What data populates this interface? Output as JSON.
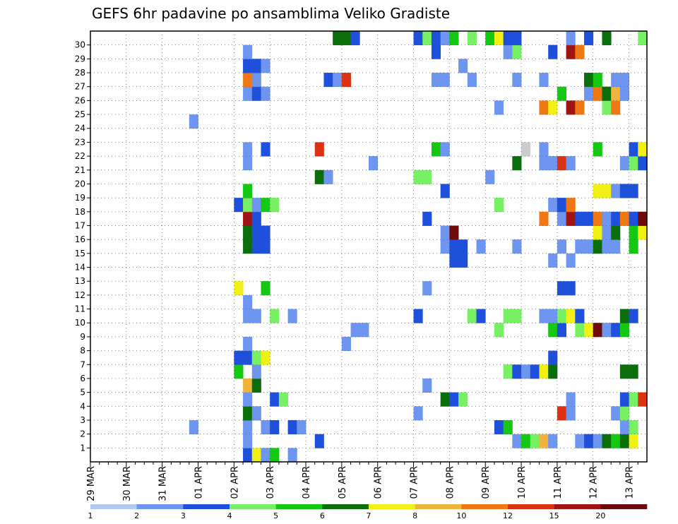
{
  "chart_data": {
    "type": "heatmap",
    "title": "GEFS 6hr padavine po ansamblima Veliko Gradiste",
    "y_categories": [
      0,
      1,
      2,
      3,
      4,
      5,
      6,
      7,
      8,
      9,
      10,
      11,
      12,
      13,
      14,
      15,
      16,
      17,
      18,
      19,
      20,
      21,
      22,
      23,
      24,
      25,
      26,
      27,
      28,
      29,
      30
    ],
    "y_tick_labels": [
      "1",
      "2",
      "3",
      "4",
      "5",
      "6",
      "7",
      "8",
      "9",
      "10",
      "11",
      "12",
      "13",
      "14",
      "15",
      "16",
      "17",
      "18",
      "19",
      "20",
      "21",
      "22",
      "23",
      "24",
      "25",
      "26",
      "27",
      "28",
      "29",
      "30"
    ],
    "x_tick_labels": [
      "29 MAR",
      "30 MAR",
      "31 MAR",
      "01 APR",
      "02 APR",
      "03 APR",
      "04 APR",
      "05 APR",
      "06 APR",
      "07 APR",
      "08 APR",
      "09 APR",
      "10 APR",
      "11 APR",
      "12 APR",
      "13 APR"
    ],
    "x_range_steps": [
      0,
      61
    ],
    "steps_per_day": 4,
    "value_unit": "mm / 6h",
    "legend": {
      "tick_labels": [
        "1",
        "2",
        "3",
        "4",
        "5",
        "6",
        "7",
        "8",
        "10",
        "12",
        "15",
        "20"
      ],
      "colors": [
        "#b4c8f0",
        "#6e96f0",
        "#1e50dc",
        "#78f064",
        "#14c814",
        "#0a6e0a",
        "#f0f014",
        "#f0b43c",
        "#f07814",
        "#dc3214",
        "#a01414",
        "#6e0a0a"
      ],
      "placement": "bottom"
    },
    "grid": true,
    "cells": [
      [
        0,
        17,
        2
      ],
      [
        0,
        18,
        6
      ],
      [
        0,
        19,
        1
      ],
      [
        0,
        20,
        4
      ],
      [
        0,
        22,
        1
      ],
      [
        1,
        17,
        1
      ],
      [
        1,
        25,
        2
      ],
      [
        1,
        47,
        1
      ],
      [
        1,
        48,
        4
      ],
      [
        1,
        49,
        3
      ],
      [
        1,
        50,
        7
      ],
      [
        1,
        51,
        1
      ],
      [
        1,
        54,
        1
      ],
      [
        1,
        55,
        2
      ],
      [
        1,
        56,
        1
      ],
      [
        1,
        57,
        5
      ],
      [
        1,
        58,
        4
      ],
      [
        1,
        59,
        5
      ],
      [
        1,
        60,
        6
      ],
      [
        2,
        11,
        1
      ],
      [
        2,
        17,
        1
      ],
      [
        2,
        19,
        1
      ],
      [
        2,
        20,
        2
      ],
      [
        2,
        22,
        2
      ],
      [
        2,
        23,
        1
      ],
      [
        2,
        45,
        2
      ],
      [
        2,
        46,
        4
      ],
      [
        2,
        59,
        1
      ],
      [
        2,
        60,
        3
      ],
      [
        3,
        17,
        5
      ],
      [
        3,
        18,
        1
      ],
      [
        3,
        36,
        1
      ],
      [
        3,
        52,
        9
      ],
      [
        3,
        53,
        1
      ],
      [
        3,
        58,
        1
      ],
      [
        3,
        59,
        3
      ],
      [
        4,
        17,
        1
      ],
      [
        4,
        20,
        2
      ],
      [
        4,
        21,
        3
      ],
      [
        4,
        39,
        5
      ],
      [
        4,
        40,
        2
      ],
      [
        4,
        41,
        3
      ],
      [
        4,
        53,
        1
      ],
      [
        4,
        59,
        2
      ],
      [
        4,
        60,
        3
      ],
      [
        4,
        61,
        9
      ],
      [
        5,
        17,
        7
      ],
      [
        5,
        18,
        5
      ],
      [
        5,
        37,
        1
      ],
      [
        6,
        16,
        4
      ],
      [
        6,
        18,
        1
      ],
      [
        6,
        46,
        3
      ],
      [
        6,
        47,
        2
      ],
      [
        6,
        48,
        1
      ],
      [
        6,
        49,
        2
      ],
      [
        6,
        50,
        6
      ],
      [
        6,
        51,
        5
      ],
      [
        6,
        59,
        5
      ],
      [
        6,
        60,
        5
      ],
      [
        7,
        16,
        2
      ],
      [
        7,
        17,
        2
      ],
      [
        7,
        18,
        3
      ],
      [
        7,
        19,
        6
      ],
      [
        7,
        51,
        2
      ],
      [
        8,
        17,
        1
      ],
      [
        8,
        28,
        1
      ],
      [
        9,
        29,
        1
      ],
      [
        9,
        30,
        1
      ],
      [
        9,
        45,
        3
      ],
      [
        9,
        51,
        4
      ],
      [
        9,
        52,
        2
      ],
      [
        9,
        54,
        3
      ],
      [
        9,
        55,
        6
      ],
      [
        9,
        56,
        11
      ],
      [
        9,
        57,
        1
      ],
      [
        9,
        58,
        2
      ],
      [
        9,
        59,
        4
      ],
      [
        10,
        17,
        1
      ],
      [
        10,
        18,
        1
      ],
      [
        10,
        20,
        3
      ],
      [
        10,
        22,
        1
      ],
      [
        10,
        36,
        2
      ],
      [
        10,
        42,
        3
      ],
      [
        10,
        43,
        2
      ],
      [
        10,
        46,
        3
      ],
      [
        10,
        47,
        3
      ],
      [
        10,
        50,
        1
      ],
      [
        10,
        51,
        1
      ],
      [
        10,
        52,
        3
      ],
      [
        10,
        53,
        6
      ],
      [
        10,
        54,
        2
      ],
      [
        10,
        59,
        5
      ],
      [
        10,
        60,
        2
      ],
      [
        11,
        17,
        1
      ],
      [
        12,
        16,
        6
      ],
      [
        12,
        19,
        4
      ],
      [
        12,
        37,
        1
      ],
      [
        12,
        52,
        2
      ],
      [
        12,
        53,
        2
      ],
      [
        14,
        40,
        2
      ],
      [
        14,
        41,
        2
      ],
      [
        14,
        51,
        1
      ],
      [
        14,
        53,
        1
      ],
      [
        15,
        17,
        5
      ],
      [
        15,
        18,
        2
      ],
      [
        15,
        19,
        2
      ],
      [
        15,
        39,
        1
      ],
      [
        15,
        40,
        2
      ],
      [
        15,
        41,
        2
      ],
      [
        15,
        43,
        1
      ],
      [
        15,
        47,
        1
      ],
      [
        15,
        52,
        1
      ],
      [
        15,
        54,
        1
      ],
      [
        15,
        55,
        1
      ],
      [
        15,
        56,
        5
      ],
      [
        15,
        57,
        1
      ],
      [
        15,
        58,
        1
      ],
      [
        15,
        60,
        4
      ],
      [
        16,
        17,
        5
      ],
      [
        16,
        18,
        2
      ],
      [
        16,
        19,
        2
      ],
      [
        16,
        39,
        1
      ],
      [
        16,
        40,
        11
      ],
      [
        16,
        56,
        6
      ],
      [
        16,
        57,
        1
      ],
      [
        16,
        58,
        5
      ],
      [
        16,
        60,
        4
      ],
      [
        16,
        61,
        6
      ],
      [
        17,
        17,
        10
      ],
      [
        17,
        18,
        2
      ],
      [
        17,
        37,
        2
      ],
      [
        17,
        50,
        8
      ],
      [
        17,
        52,
        1
      ],
      [
        17,
        53,
        10
      ],
      [
        17,
        54,
        2
      ],
      [
        17,
        55,
        2
      ],
      [
        17,
        56,
        8
      ],
      [
        17,
        57,
        1
      ],
      [
        17,
        58,
        2
      ],
      [
        17,
        59,
        8
      ],
      [
        17,
        60,
        2
      ],
      [
        17,
        61,
        11
      ],
      [
        18,
        16,
        2
      ],
      [
        18,
        17,
        3
      ],
      [
        18,
        18,
        1
      ],
      [
        18,
        19,
        4
      ],
      [
        18,
        20,
        3
      ],
      [
        18,
        45,
        3
      ],
      [
        18,
        51,
        1
      ],
      [
        18,
        52,
        2
      ],
      [
        18,
        53,
        8
      ],
      [
        19,
        17,
        4
      ],
      [
        19,
        39,
        2
      ],
      [
        19,
        56,
        6
      ],
      [
        19,
        57,
        6
      ],
      [
        19,
        58,
        1
      ],
      [
        19,
        59,
        2
      ],
      [
        19,
        60,
        2
      ],
      [
        20,
        25,
        5
      ],
      [
        20,
        26,
        1
      ],
      [
        20,
        36,
        3
      ],
      [
        20,
        37,
        3
      ],
      [
        20,
        44,
        1
      ],
      [
        21,
        17,
        1
      ],
      [
        21,
        31,
        1
      ],
      [
        21,
        47,
        5
      ],
      [
        21,
        50,
        1
      ],
      [
        21,
        51,
        1
      ],
      [
        21,
        52,
        9
      ],
      [
        21,
        53,
        1
      ],
      [
        21,
        59,
        1
      ],
      [
        21,
        60,
        3
      ],
      [
        21,
        61,
        2
      ],
      [
        22,
        17,
        1
      ],
      [
        22,
        19,
        2
      ],
      [
        22,
        25,
        9
      ],
      [
        22,
        38,
        4
      ],
      [
        22,
        39,
        1
      ],
      [
        22,
        48,
        12
      ],
      [
        22,
        50,
        1
      ],
      [
        22,
        56,
        4
      ],
      [
        22,
        60,
        2
      ],
      [
        22,
        61,
        6
      ],
      [
        24,
        11,
        1
      ],
      [
        25,
        45,
        1
      ],
      [
        25,
        50,
        8
      ],
      [
        25,
        51,
        6
      ],
      [
        25,
        53,
        10
      ],
      [
        25,
        54,
        8
      ],
      [
        25,
        57,
        3
      ],
      [
        25,
        58,
        8
      ],
      [
        26,
        17,
        1
      ],
      [
        26,
        18,
        2
      ],
      [
        26,
        19,
        1
      ],
      [
        26,
        52,
        4
      ],
      [
        26,
        55,
        1
      ],
      [
        26,
        56,
        8
      ],
      [
        26,
        57,
        5
      ],
      [
        26,
        58,
        7
      ],
      [
        26,
        59,
        1
      ],
      [
        27,
        17,
        8
      ],
      [
        27,
        18,
        1
      ],
      [
        27,
        26,
        2
      ],
      [
        27,
        27,
        1
      ],
      [
        27,
        28,
        9
      ],
      [
        27,
        38,
        1
      ],
      [
        27,
        39,
        1
      ],
      [
        27,
        42,
        1
      ],
      [
        27,
        47,
        1
      ],
      [
        27,
        50,
        1
      ],
      [
        27,
        55,
        5
      ],
      [
        27,
        56,
        4
      ],
      [
        27,
        58,
        1
      ],
      [
        27,
        59,
        1
      ],
      [
        28,
        17,
        2
      ],
      [
        28,
        18,
        2
      ],
      [
        28,
        19,
        1
      ],
      [
        28,
        41,
        1
      ],
      [
        29,
        17,
        1
      ],
      [
        29,
        38,
        2
      ],
      [
        29,
        46,
        1
      ],
      [
        29,
        47,
        3
      ],
      [
        29,
        51,
        2
      ],
      [
        29,
        53,
        10
      ],
      [
        29,
        54,
        8
      ],
      [
        30,
        27,
        5
      ],
      [
        30,
        28,
        5
      ],
      [
        30,
        29,
        2
      ],
      [
        30,
        36,
        2
      ],
      [
        30,
        37,
        3
      ],
      [
        30,
        38,
        2
      ],
      [
        30,
        39,
        1
      ],
      [
        30,
        40,
        4
      ],
      [
        30,
        42,
        3
      ],
      [
        30,
        44,
        4
      ],
      [
        30,
        45,
        6
      ],
      [
        30,
        46,
        2
      ],
      [
        30,
        47,
        2
      ],
      [
        30,
        53,
        1
      ],
      [
        30,
        55,
        2
      ],
      [
        30,
        57,
        5
      ],
      [
        30,
        61,
        3
      ]
    ]
  }
}
